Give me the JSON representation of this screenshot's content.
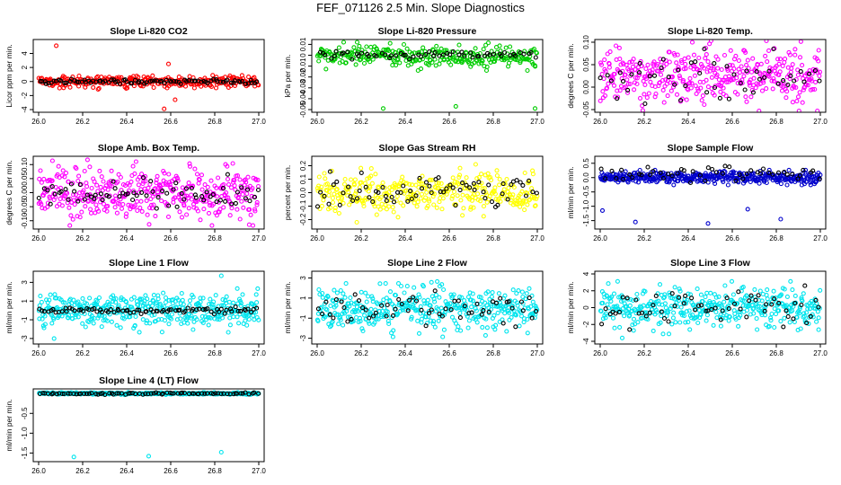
{
  "title": "FEF_071126  2.5 Min. Slope Diagnostics",
  "colors": {
    "background": "#ffffff",
    "frame": "#000000",
    "overlay_points": "#000000"
  },
  "chart_data": [
    {
      "type": "scatter",
      "title": "Slope Li-820 CO2",
      "ylabel": "Licor ppm per min.",
      "xlabel": "",
      "xlim": [
        26.0,
        27.0
      ],
      "ylim": [
        -4,
        5.6
      ],
      "xticks": [
        "26.0",
        "26.2",
        "26.4",
        "26.6",
        "26.8",
        "27.0"
      ],
      "yticks": [
        {
          "value": -4,
          "label": "-4"
        },
        {
          "value": -2,
          "label": "-2"
        },
        {
          "value": 0,
          "label": "0"
        },
        {
          "value": 2,
          "label": "2"
        },
        {
          "value": 4,
          "label": "4"
        }
      ],
      "series": [
        {
          "name": "all",
          "color": "#ff0000",
          "count": 300,
          "center": 0,
          "spread": 0.45,
          "outliers": [
            {
              "x": 26.08,
              "y": 5.1
            },
            {
              "x": 26.57,
              "y": -3.9
            },
            {
              "x": 26.59,
              "y": 2.5
            },
            {
              "x": 26.62,
              "y": -2.6
            }
          ]
        },
        {
          "name": "subset",
          "color": "#000000",
          "count": 90,
          "center": 0,
          "spread": 0.15
        }
      ]
    },
    {
      "type": "scatter",
      "title": "Slope Li-820 Pressure",
      "ylabel": "kPa per min.",
      "xlabel": "",
      "xlim": [
        26.0,
        27.0
      ],
      "ylim": [
        -0.05,
        0.012
      ],
      "xticks": [
        "26.0",
        "26.2",
        "26.4",
        "26.6",
        "26.8",
        "27.0"
      ],
      "yticks": [
        {
          "value": -0.05,
          "label": "-0.05"
        },
        {
          "value": -0.04,
          "label": "-0.04"
        },
        {
          "value": -0.03,
          "label": "-0.03"
        },
        {
          "value": -0.02,
          "label": "-0.02"
        },
        {
          "value": -0.01,
          "label": "-0.01"
        },
        {
          "value": 0,
          "label": "0"
        },
        {
          "value": 0.01,
          "label": "0.01"
        }
      ],
      "series": [
        {
          "name": "all",
          "color": "#00cc00",
          "count": 300,
          "center": -0.001,
          "spread": 0.005,
          "outliers": [
            {
              "x": 26.3,
              "y": -0.049
            },
            {
              "x": 26.63,
              "y": -0.047
            },
            {
              "x": 26.99,
              "y": -0.049
            }
          ]
        },
        {
          "name": "subset",
          "color": "#000000",
          "count": 60,
          "center": 0,
          "spread": 0.0015
        }
      ]
    },
    {
      "type": "scatter",
      "title": "Slope Li-820 Temp.",
      "ylabel": "degrees C per min.",
      "xlabel": "",
      "xlim": [
        26.0,
        27.0
      ],
      "ylim": [
        -0.05,
        0.1
      ],
      "xticks": [
        "26.0",
        "26.2",
        "26.4",
        "26.6",
        "26.8",
        "27.0"
      ],
      "yticks": [
        {
          "value": -0.05,
          "label": "-0.05"
        },
        {
          "value": 0.0,
          "label": "0.00"
        },
        {
          "value": 0.05,
          "label": "0.05"
        },
        {
          "value": 0.1,
          "label": "0.10"
        }
      ],
      "series": [
        {
          "name": "all",
          "color": "#ff00ff",
          "count": 400,
          "center": 0.025,
          "spread": 0.03,
          "outliers": []
        },
        {
          "name": "subset",
          "color": "#000000",
          "count": 50,
          "center": 0.02,
          "spread": 0.025
        }
      ]
    },
    {
      "type": "scatter",
      "title": "Slope Amb. Box Temp.",
      "ylabel": "degrees C per min.",
      "xlabel": "",
      "xlim": [
        26.0,
        27.0
      ],
      "ylim": [
        -0.12,
        0.12
      ],
      "xticks": [
        "26.0",
        "26.2",
        "26.4",
        "26.6",
        "26.8",
        "27.0"
      ],
      "yticks": [
        {
          "value": -0.1,
          "label": "-0.10"
        },
        {
          "value": -0.05,
          "label": "-0.05"
        },
        {
          "value": 0.0,
          "label": "0.00"
        },
        {
          "value": 0.05,
          "label": "0.05"
        },
        {
          "value": 0.1,
          "label": "0.10"
        }
      ],
      "series": [
        {
          "name": "all",
          "color": "#ff00ff",
          "count": 400,
          "center": 0.0,
          "spread": 0.045,
          "outliers": []
        },
        {
          "name": "subset",
          "color": "#000000",
          "count": 70,
          "center": 0.0,
          "spread": 0.025
        }
      ]
    },
    {
      "type": "scatter",
      "title": "Slope Gas Stream RH",
      "ylabel": "percent per min.",
      "xlabel": "",
      "xlim": [
        26.0,
        27.0
      ],
      "ylim": [
        -0.25,
        0.25
      ],
      "xticks": [
        "26.0",
        "26.2",
        "26.4",
        "26.6",
        "26.8",
        "27.0"
      ],
      "yticks": [
        {
          "value": -0.2,
          "label": "-0.2"
        },
        {
          "value": -0.1,
          "label": "-0.1"
        },
        {
          "value": 0.0,
          "label": "0.0"
        },
        {
          "value": 0.1,
          "label": "0.1"
        },
        {
          "value": 0.2,
          "label": "0.2"
        }
      ],
      "series": [
        {
          "name": "all",
          "color": "#ffff00",
          "count": 350,
          "center": 0.0,
          "spread": 0.07,
          "outliers": [
            {
              "x": 26.18,
              "y": -0.22
            },
            {
              "x": 26.72,
              "y": 0.21
            }
          ]
        },
        {
          "name": "subset",
          "color": "#000000",
          "count": 70,
          "center": 0.0,
          "spread": 0.06
        }
      ]
    },
    {
      "type": "scatter",
      "title": "Slope Sample Flow",
      "ylabel": "ml/min per min.",
      "xlabel": "",
      "xlim": [
        26.0,
        27.0
      ],
      "ylim": [
        -1.7,
        0.65
      ],
      "xticks": [
        "26.0",
        "26.2",
        "26.4",
        "26.6",
        "26.8",
        "27.0"
      ],
      "yticks": [
        {
          "value": -1.5,
          "label": "-1.5"
        },
        {
          "value": -1.0,
          "label": "-1.0"
        },
        {
          "value": -0.5,
          "label": "-0.5"
        },
        {
          "value": 0.0,
          "label": "0.0"
        },
        {
          "value": 0.5,
          "label": "0.5"
        }
      ],
      "series": [
        {
          "name": "all",
          "color": "#0000cc",
          "count": 400,
          "center": 0.0,
          "spread": 0.1,
          "outliers": [
            {
              "x": 26.01,
              "y": -1.15
            },
            {
              "x": 26.16,
              "y": -1.55
            },
            {
              "x": 26.49,
              "y": -1.6
            },
            {
              "x": 26.67,
              "y": -1.1
            },
            {
              "x": 26.82,
              "y": -1.45
            }
          ]
        },
        {
          "name": "subset",
          "color": "#000000",
          "count": 50,
          "center": 0.15,
          "spread": 0.15
        }
      ]
    },
    {
      "type": "scatter",
      "title": "Slope Line 1 Flow",
      "ylabel": "ml/min per min.",
      "xlabel": "",
      "xlim": [
        26.0,
        27.0
      ],
      "ylim": [
        -3.3,
        3.9
      ],
      "xticks": [
        "26.0",
        "26.2",
        "26.4",
        "26.6",
        "26.8",
        "27.0"
      ],
      "yticks": [
        {
          "value": -3,
          "label": "-3"
        },
        {
          "value": -1,
          "label": "-1"
        },
        {
          "value": 1,
          "label": "1"
        },
        {
          "value": 3,
          "label": "3"
        }
      ],
      "series": [
        {
          "name": "all",
          "color": "#00e5ee",
          "count": 400,
          "center": 0.0,
          "spread": 0.9,
          "outliers": [
            {
              "x": 26.83,
              "y": 3.7
            },
            {
              "x": 26.07,
              "y": -3.0
            }
          ]
        },
        {
          "name": "subset",
          "color": "#000000",
          "count": 80,
          "center": 0.0,
          "spread": 0.15
        }
      ]
    },
    {
      "type": "scatter",
      "title": "Slope Line 2 Flow",
      "ylabel": "ml/min per min.",
      "xlabel": "",
      "xlim": [
        26.0,
        27.0
      ],
      "ylim": [
        -3.3,
        3.4
      ],
      "xticks": [
        "26.0",
        "26.2",
        "26.4",
        "26.6",
        "26.8",
        "27.0"
      ],
      "yticks": [
        {
          "value": -3,
          "label": "-3"
        },
        {
          "value": -1,
          "label": "-1"
        },
        {
          "value": 1,
          "label": "1"
        },
        {
          "value": 3,
          "label": "3"
        }
      ],
      "series": [
        {
          "name": "all",
          "color": "#00e5ee",
          "count": 400,
          "center": 0.0,
          "spread": 1.1,
          "outliers": []
        },
        {
          "name": "subset",
          "color": "#000000",
          "count": 60,
          "center": 0.0,
          "spread": 0.9
        }
      ]
    },
    {
      "type": "scatter",
      "title": "Slope Line 3 Flow",
      "ylabel": "ml/min per min.",
      "xlabel": "",
      "xlim": [
        26.0,
        27.0
      ],
      "ylim": [
        -4,
        4
      ],
      "xticks": [
        "26.0",
        "26.2",
        "26.4",
        "26.6",
        "26.8",
        "27.0"
      ],
      "yticks": [
        {
          "value": -4,
          "label": "-4"
        },
        {
          "value": -2,
          "label": "-2"
        },
        {
          "value": 0,
          "label": "0"
        },
        {
          "value": 2,
          "label": "2"
        },
        {
          "value": 4,
          "label": "4"
        }
      ],
      "series": [
        {
          "name": "all",
          "color": "#00e5ee",
          "count": 400,
          "center": 0.0,
          "spread": 1.2,
          "outliers": [
            {
              "x": 26.1,
              "y": -3.6
            }
          ]
        },
        {
          "name": "subset",
          "color": "#000000",
          "count": 60,
          "center": 0.0,
          "spread": 1.0
        }
      ]
    },
    {
      "type": "scatter",
      "title": "Slope Line 4 (LT) Flow",
      "ylabel": "ml/min per min.",
      "xlabel": "",
      "xlim": [
        26.0,
        27.0
      ],
      "ylim": [
        -1.65,
        0.05
      ],
      "xticks": [
        "26.0",
        "26.2",
        "26.4",
        "26.6",
        "26.8",
        "27.0"
      ],
      "yticks": [
        {
          "value": -1.5,
          "label": "-1.5"
        },
        {
          "value": -1.0,
          "label": "-1.0"
        },
        {
          "value": -0.5,
          "label": "-0.5"
        }
      ],
      "series": [
        {
          "name": "all",
          "color": "#00e5ee",
          "count": 300,
          "center": 0.0,
          "spread": 0.012,
          "outliers": [
            {
              "x": 26.16,
              "y": -1.6
            },
            {
              "x": 26.5,
              "y": -1.58
            },
            {
              "x": 26.83,
              "y": -1.48
            }
          ]
        },
        {
          "name": "subset",
          "color": "#000000",
          "count": 80,
          "center": 0.0,
          "spread": 0.01
        }
      ]
    }
  ]
}
